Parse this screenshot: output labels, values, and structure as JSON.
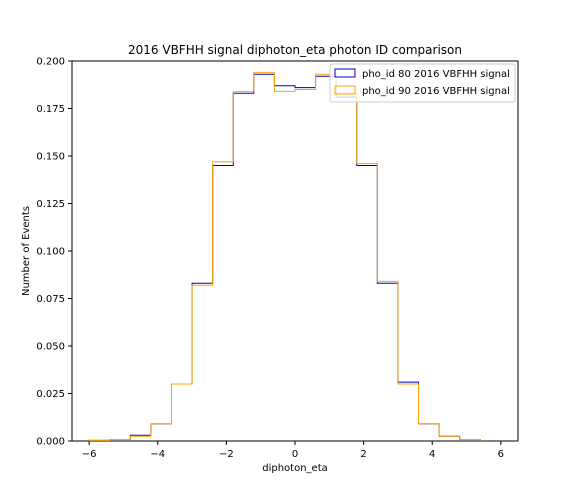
{
  "chart_data": {
    "type": "step",
    "title": "2016 VBFHH signal diphoton_eta photon ID comparison",
    "xlabel": "diphoton_eta",
    "ylabel": "Number of Events",
    "xlim": [
      -6.5,
      6.5
    ],
    "ylim": [
      0,
      0.2
    ],
    "xticks": [
      -6,
      -4,
      -2,
      0,
      2,
      4,
      6
    ],
    "xtick_labels": [
      "−6",
      "−4",
      "−2",
      "0",
      "2",
      "4",
      "6"
    ],
    "yticks": [
      0,
      0.025,
      0.05,
      0.075,
      0.1,
      0.125,
      0.15,
      0.175,
      0.2
    ],
    "ytick_labels": [
      "0.000",
      "0.025",
      "0.050",
      "0.075",
      "0.100",
      "0.125",
      "0.150",
      "0.175",
      "0.200"
    ],
    "grid": false,
    "legend_position": "top-right",
    "bin_edges": [
      -6.0,
      -5.4,
      -4.8,
      -4.2,
      -3.6,
      -3.0,
      -2.4,
      -1.8,
      -1.2,
      -0.6,
      0.0,
      0.6,
      1.2,
      1.8,
      2.4,
      3.0,
      3.6,
      4.2,
      4.8,
      5.4
    ],
    "series": [
      {
        "name": "pho_id 80 2016 VBFHH signal",
        "color": "#0000cc",
        "values": [
          0.0003,
          0.0008,
          0.003,
          0.009,
          0.03,
          0.083,
          0.145,
          0.183,
          0.193,
          0.187,
          0.186,
          0.192,
          0.181,
          0.145,
          0.083,
          0.031,
          0.009,
          0.0025,
          0.0008
        ]
      },
      {
        "name": "pho_id 90 2016 VBFHH signal",
        "color": "#ffa500",
        "values": [
          0.0003,
          0.0008,
          0.0025,
          0.009,
          0.03,
          0.082,
          0.147,
          0.184,
          0.194,
          0.184,
          0.185,
          0.193,
          0.183,
          0.146,
          0.084,
          0.03,
          0.009,
          0.0025,
          0.0008
        ]
      }
    ]
  }
}
